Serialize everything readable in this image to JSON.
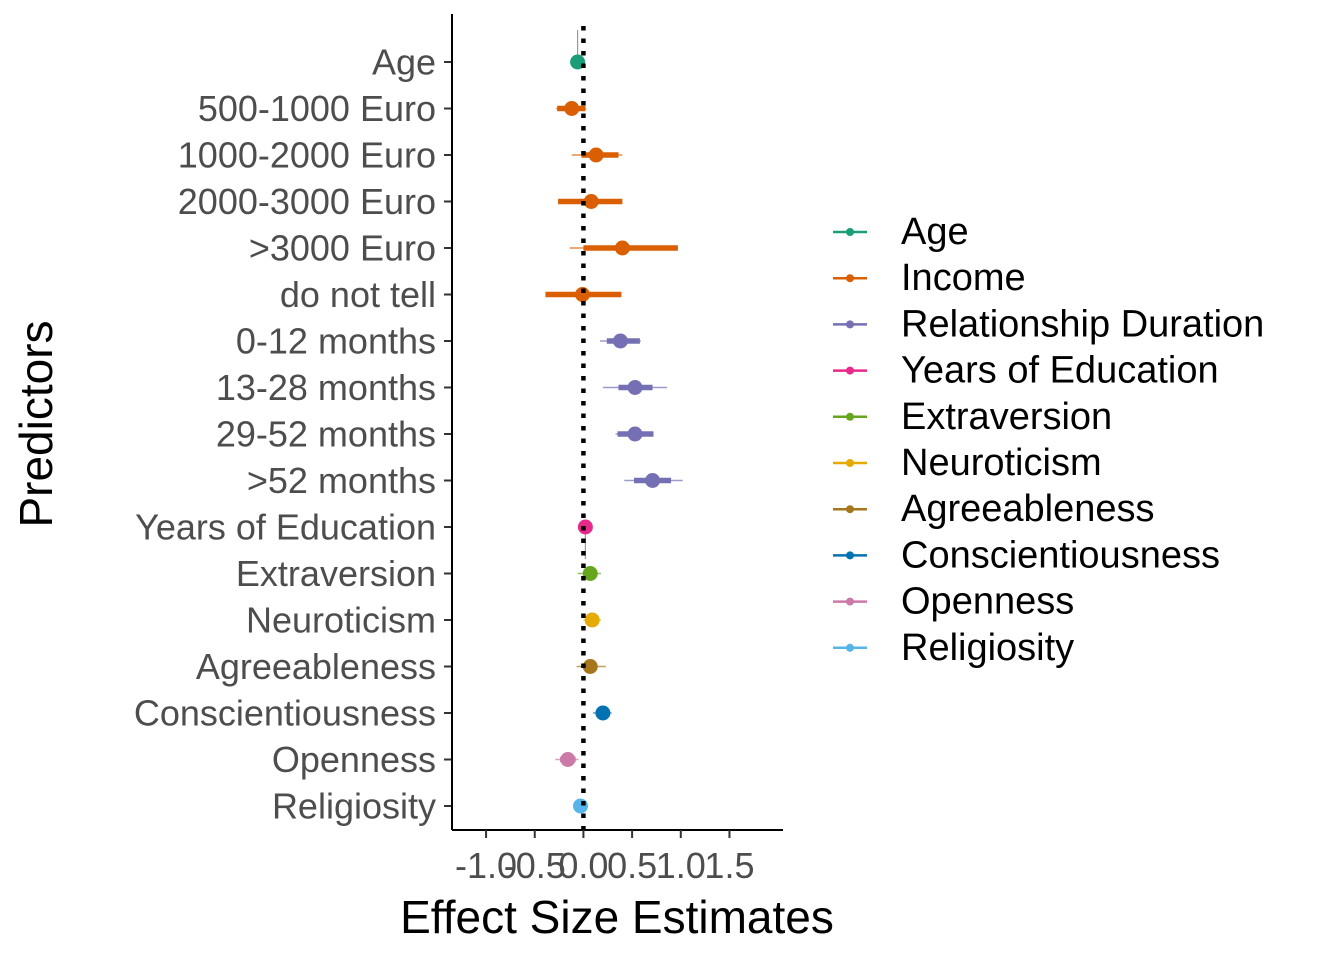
{
  "chart_data": {
    "type": "forest",
    "xlabel": "Effect Size Estimates",
    "ylabel": "Predictors",
    "xlim": [
      -1.35,
      2.05
    ],
    "xticks": [
      -1.0,
      -0.5,
      0.0,
      0.5,
      1.0,
      1.5
    ],
    "xtick_labels": [
      "-1.0",
      "-0.5",
      "0.0",
      "0.5",
      "1.0",
      "1.5"
    ],
    "reference_line": 0,
    "grid": false,
    "legend_position": "right",
    "groups": [
      {
        "name": "Age",
        "color": "#1B9E77"
      },
      {
        "name": "Income",
        "color": "#D95F02"
      },
      {
        "name": "Relationship Duration",
        "color": "#7570B3"
      },
      {
        "name": "Years of Education",
        "color": "#E7298A"
      },
      {
        "name": "Extraversion",
        "color": "#66A61E"
      },
      {
        "name": "Neuroticism",
        "color": "#E6AB02"
      },
      {
        "name": "Agreeableness",
        "color": "#A6761D"
      },
      {
        "name": "Conscientiousness",
        "color": "#0072B2"
      },
      {
        "name": "Openness",
        "color": "#CC79A7"
      },
      {
        "name": "Religiosity",
        "color": "#56B4E9"
      }
    ],
    "predictors": [
      {
        "label": "Age",
        "group": 0,
        "estimate": -0.06,
        "inner": [
          -0.08,
          -0.04
        ],
        "outer": [
          -0.09,
          -0.03
        ],
        "extra": [
          -0.06,
          0.33
        ]
      },
      {
        "label": "500-1000 Euro",
        "group": 1,
        "estimate": -0.12,
        "inner": [
          -0.27,
          0.02
        ],
        "outer": [
          -0.28,
          0.03
        ]
      },
      {
        "label": "1000-2000 Euro",
        "group": 1,
        "estimate": 0.13,
        "inner": [
          -0.02,
          0.36
        ],
        "outer": [
          -0.12,
          0.4
        ]
      },
      {
        "label": "2000-3000 Euro",
        "group": 1,
        "estimate": 0.08,
        "inner": [
          -0.26,
          0.4
        ],
        "outer": [
          -0.26,
          0.4
        ]
      },
      {
        "label": ">3000 Euro",
        "group": 1,
        "estimate": 0.4,
        "inner": [
          0.0,
          0.97
        ],
        "outer": [
          -0.14,
          0.97
        ]
      },
      {
        "label": "do not tell",
        "group": 1,
        "estimate": -0.01,
        "inner": [
          -0.39,
          0.39
        ],
        "outer": [
          -0.39,
          0.39
        ]
      },
      {
        "label": "0-12 months",
        "group": 2,
        "estimate": 0.38,
        "inner": [
          0.24,
          0.58
        ],
        "outer": [
          0.17,
          0.59
        ]
      },
      {
        "label": "13-28 months",
        "group": 2,
        "estimate": 0.53,
        "inner": [
          0.36,
          0.71
        ],
        "outer": [
          0.2,
          0.86
        ]
      },
      {
        "label": "29-52 months",
        "group": 2,
        "estimate": 0.53,
        "inner": [
          0.35,
          0.72
        ],
        "outer": [
          0.33,
          0.72
        ]
      },
      {
        "label": ">52 months",
        "group": 2,
        "estimate": 0.71,
        "inner": [
          0.52,
          0.9
        ],
        "outer": [
          0.42,
          1.02
        ]
      },
      {
        "label": "Years of Education",
        "group": 3,
        "estimate": 0.02,
        "inner": [
          -0.02,
          0.05
        ],
        "outer": [
          -0.03,
          0.06
        ],
        "extra": [
          0.02,
          -0.31
        ]
      },
      {
        "label": "Extraversion",
        "group": 4,
        "estimate": 0.07,
        "inner": [
          0.0,
          0.13
        ],
        "outer": [
          -0.06,
          0.18
        ]
      },
      {
        "label": "Neuroticism",
        "group": 5,
        "estimate": 0.09,
        "inner": [
          0.02,
          0.16
        ],
        "outer": [
          0.0,
          0.18
        ]
      },
      {
        "label": "Agreeableness",
        "group": 6,
        "estimate": 0.07,
        "inner": [
          0.0,
          0.14
        ],
        "outer": [
          -0.07,
          0.23
        ]
      },
      {
        "label": "Conscientiousness",
        "group": 7,
        "estimate": 0.2,
        "inner": [
          0.14,
          0.26
        ],
        "outer": [
          0.1,
          0.29
        ]
      },
      {
        "label": "Openness",
        "group": 8,
        "estimate": -0.16,
        "inner": [
          -0.24,
          -0.08
        ],
        "outer": [
          -0.29,
          -0.05
        ]
      },
      {
        "label": "Religiosity",
        "group": 9,
        "estimate": -0.03,
        "inner": [
          -0.06,
          0.0
        ],
        "outer": [
          -0.08,
          0.02
        ]
      }
    ]
  }
}
